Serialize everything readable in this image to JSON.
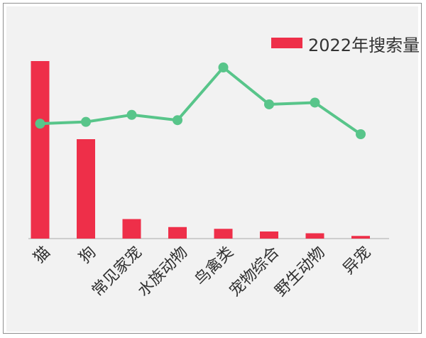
{
  "chart_data": {
    "type": "bar",
    "categories": [
      "猫",
      "狗",
      "常见家宠",
      "水族动物",
      "鸟禽类",
      "宠物综合",
      "野生动物",
      "异宠"
    ],
    "series": [
      {
        "name": "2022年搜索量",
        "type": "bar",
        "values": [
          100,
          56,
          11,
          6.5,
          5.5,
          4,
          3,
          1.5
        ]
      },
      {
        "type": "line",
        "values": [
          65,
          66,
          70,
          67,
          97,
          76,
          77,
          59
        ]
      }
    ],
    "ylim": [
      0,
      100
    ],
    "legend": "top-right",
    "grid": false,
    "colors": {
      "bar": "#ee2f49",
      "line": "#58c58a",
      "axis": "#b8b8b8",
      "text": "#2f2f2f"
    }
  }
}
